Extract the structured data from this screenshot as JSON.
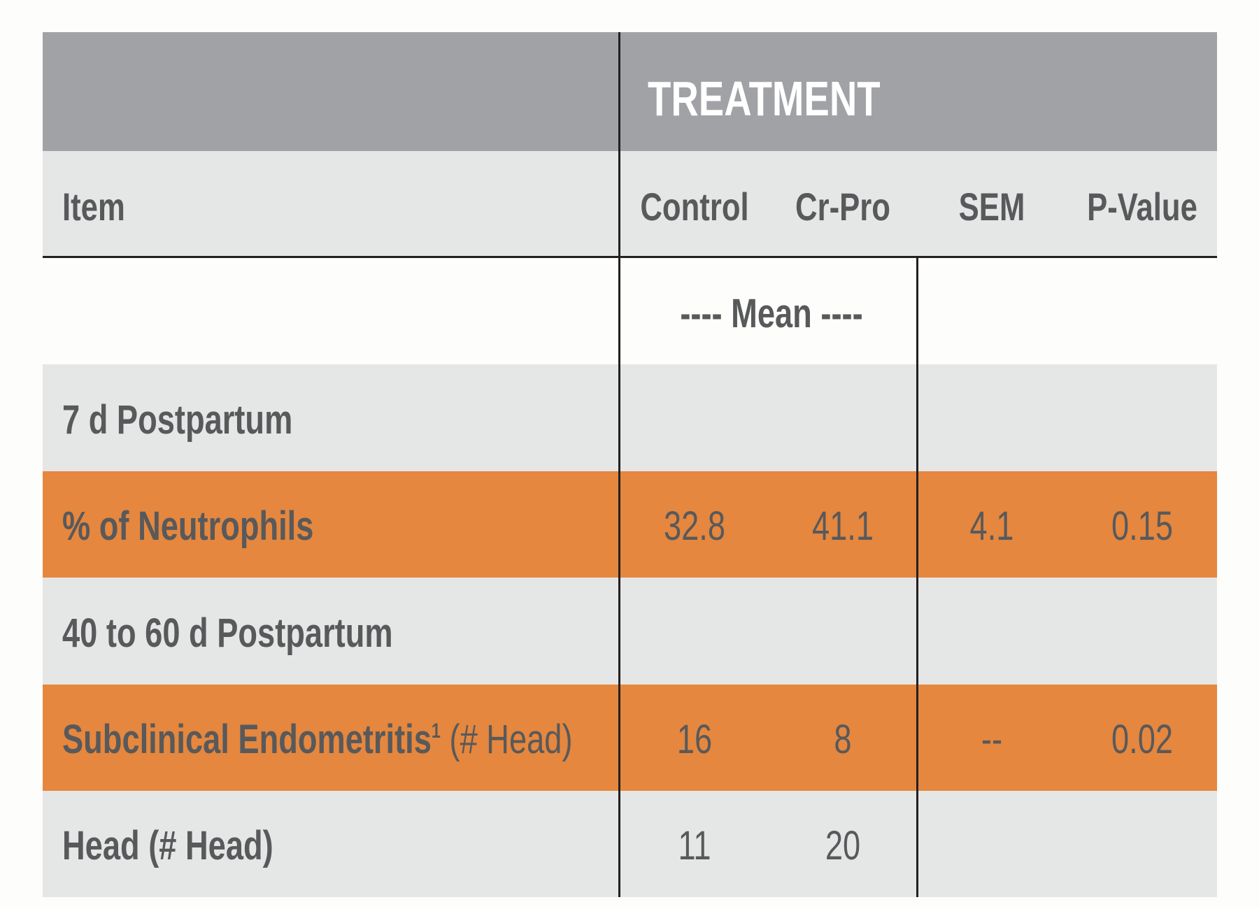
{
  "table": {
    "group_header": "TREATMENT",
    "columns": {
      "item": "Item",
      "control": "Control",
      "crpro": "Cr-Pro",
      "sem": "SEM",
      "pvalue": "P-Value"
    },
    "units_label": "---- Mean ----",
    "rows": [
      {
        "label": "7 d Postpartum",
        "label_suffix": "",
        "control": "",
        "crpro": "",
        "sem": "",
        "pvalue": ""
      },
      {
        "label": "% of Neutrophils",
        "label_suffix": "",
        "control": "32.8",
        "crpro": "41.1",
        "sem": "4.1",
        "pvalue": "0.15"
      },
      {
        "label": "40 to 60 d Postpartum",
        "label_suffix": "",
        "control": "",
        "crpro": "",
        "sem": "",
        "pvalue": ""
      },
      {
        "label": "Subclinical Endometritis",
        "label_sup": "1",
        "label_suffix": "(# Head)",
        "control": "16",
        "crpro": "8",
        "sem": "--",
        "pvalue": "0.02"
      },
      {
        "label": "Head (# Head)",
        "label_suffix": "",
        "control": "11",
        "crpro": "20",
        "sem": "",
        "pvalue": ""
      }
    ]
  },
  "colors": {
    "header_gray": "#a1a2a5",
    "row_gray": "#e5e6e6",
    "highlight_orange": "#e5873e",
    "text": "#58595b",
    "rule": "#231f20"
  }
}
